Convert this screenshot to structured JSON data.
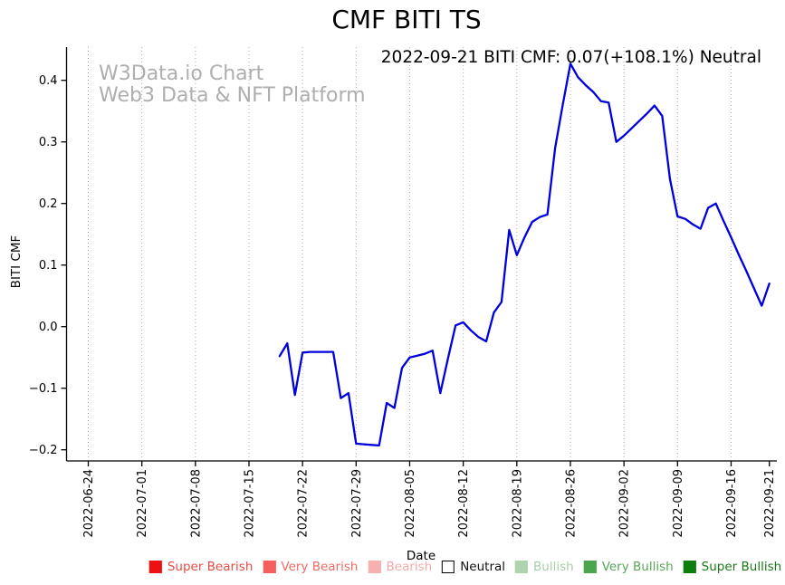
{
  "chart_data": {
    "type": "line",
    "title": "CMF BITI TS",
    "annotation": "2022-09-21 BITI CMF: 0.07(+108.1%) Neutral",
    "watermark": {
      "line1": "W3Data.io Chart",
      "line2": "Web3 Data & NFT Platform"
    },
    "xlabel": "Date",
    "ylabel": "BITI CMF",
    "grid": "vertical dotted gridlines at weekly x ticks",
    "legend_position": "bottom center",
    "colors": {
      "line": "#0000dd",
      "gridline": "#aaaaaa",
      "axis": "#000000",
      "watermark": "#aeaeae",
      "title": "#000000"
    },
    "ylim": [
      -0.217,
      0.454
    ],
    "y_ticks": [
      {
        "label": "0.4",
        "value": 0.4
      },
      {
        "label": "0.3",
        "value": 0.3
      },
      {
        "label": "0.2",
        "value": 0.2
      },
      {
        "label": "0.1",
        "value": 0.1
      },
      {
        "label": "0.0",
        "value": 0.0
      },
      {
        "label": "−0.1",
        "value": -0.1
      },
      {
        "label": "−0.2",
        "value": -0.2
      }
    ],
    "x_ticks": [
      {
        "label": "2022-06-24",
        "date": "2022-06-24",
        "grid": true
      },
      {
        "label": "2022-07-01",
        "date": "2022-07-01",
        "grid": true
      },
      {
        "label": "2022-07-08",
        "date": "2022-07-08",
        "grid": true
      },
      {
        "label": "2022-07-15",
        "date": "2022-07-15",
        "grid": true
      },
      {
        "label": "2022-07-22",
        "date": "2022-07-22",
        "grid": true
      },
      {
        "label": "2022-07-29",
        "date": "2022-07-29",
        "grid": true
      },
      {
        "label": "2022-08-05",
        "date": "2022-08-05",
        "grid": true
      },
      {
        "label": "2022-08-12",
        "date": "2022-08-12",
        "grid": true
      },
      {
        "label": "2022-08-19",
        "date": "2022-08-19",
        "grid": true
      },
      {
        "label": "2022-08-26",
        "date": "2022-08-26",
        "grid": true
      },
      {
        "label": "2022-09-02",
        "date": "2022-09-02",
        "grid": true
      },
      {
        "label": "2022-09-09",
        "date": "2022-09-09",
        "grid": true
      },
      {
        "label": "2022-09-16",
        "date": "2022-09-16",
        "grid": true
      },
      {
        "label": "2022-09-21",
        "date": "2022-09-21",
        "grid": false
      }
    ],
    "series": [
      {
        "name": "BITI CMF",
        "points": [
          {
            "date": "2022-07-19",
            "value": -0.048
          },
          {
            "date": "2022-07-20",
            "value": -0.027
          },
          {
            "date": "2022-07-21",
            "value": -0.111
          },
          {
            "date": "2022-07-22",
            "value": -0.042
          },
          {
            "date": "2022-07-23",
            "value": -0.041
          },
          {
            "date": "2022-07-24",
            "value": -0.041
          },
          {
            "date": "2022-07-25",
            "value": -0.041
          },
          {
            "date": "2022-07-26",
            "value": -0.041
          },
          {
            "date": "2022-07-27",
            "value": -0.116
          },
          {
            "date": "2022-07-28",
            "value": -0.108
          },
          {
            "date": "2022-07-29",
            "value": -0.19
          },
          {
            "date": "2022-07-30",
            "value": -0.191
          },
          {
            "date": "2022-07-31",
            "value": -0.192
          },
          {
            "date": "2022-08-01",
            "value": -0.193
          },
          {
            "date": "2022-08-02",
            "value": -0.124
          },
          {
            "date": "2022-08-03",
            "value": -0.132
          },
          {
            "date": "2022-08-04",
            "value": -0.067
          },
          {
            "date": "2022-08-05",
            "value": -0.05
          },
          {
            "date": "2022-08-06",
            "value": -0.047
          },
          {
            "date": "2022-08-07",
            "value": -0.044
          },
          {
            "date": "2022-08-08",
            "value": -0.039
          },
          {
            "date": "2022-08-09",
            "value": -0.108
          },
          {
            "date": "2022-08-10",
            "value": -0.052
          },
          {
            "date": "2022-08-11",
            "value": 0.002
          },
          {
            "date": "2022-08-12",
            "value": 0.007
          },
          {
            "date": "2022-08-13",
            "value": -0.006
          },
          {
            "date": "2022-08-14",
            "value": -0.017
          },
          {
            "date": "2022-08-15",
            "value": -0.024
          },
          {
            "date": "2022-08-16",
            "value": 0.023
          },
          {
            "date": "2022-08-17",
            "value": 0.04
          },
          {
            "date": "2022-08-18",
            "value": 0.157
          },
          {
            "date": "2022-08-19",
            "value": 0.116
          },
          {
            "date": "2022-08-20",
            "value": 0.145
          },
          {
            "date": "2022-08-21",
            "value": 0.17
          },
          {
            "date": "2022-08-22",
            "value": 0.178
          },
          {
            "date": "2022-08-23",
            "value": 0.182
          },
          {
            "date": "2022-08-24",
            "value": 0.29
          },
          {
            "date": "2022-08-25",
            "value": 0.36
          },
          {
            "date": "2022-08-26",
            "value": 0.427
          },
          {
            "date": "2022-08-27",
            "value": 0.405
          },
          {
            "date": "2022-08-28",
            "value": 0.392
          },
          {
            "date": "2022-08-29",
            "value": 0.381
          },
          {
            "date": "2022-08-30",
            "value": 0.366
          },
          {
            "date": "2022-08-31",
            "value": 0.364
          },
          {
            "date": "2022-09-01",
            "value": 0.3
          },
          {
            "date": "2022-09-02",
            "value": 0.31
          },
          {
            "date": "2022-09-03",
            "value": 0.322
          },
          {
            "date": "2022-09-04",
            "value": 0.334
          },
          {
            "date": "2022-09-05",
            "value": 0.346
          },
          {
            "date": "2022-09-06",
            "value": 0.359
          },
          {
            "date": "2022-09-07",
            "value": 0.342
          },
          {
            "date": "2022-09-08",
            "value": 0.24
          },
          {
            "date": "2022-09-09",
            "value": 0.179
          },
          {
            "date": "2022-09-10",
            "value": 0.175
          },
          {
            "date": "2022-09-11",
            "value": 0.166
          },
          {
            "date": "2022-09-12",
            "value": 0.159
          },
          {
            "date": "2022-09-13",
            "value": 0.193
          },
          {
            "date": "2022-09-14",
            "value": 0.2
          },
          {
            "date": "2022-09-15",
            "value": 0.172
          },
          {
            "date": "2022-09-16",
            "value": 0.145
          },
          {
            "date": "2022-09-17",
            "value": 0.117
          },
          {
            "date": "2022-09-18",
            "value": 0.09
          },
          {
            "date": "2022-09-19",
            "value": 0.062
          },
          {
            "date": "2022-09-20",
            "value": 0.034
          },
          {
            "date": "2022-09-21",
            "value": 0.07
          }
        ]
      }
    ],
    "legend": [
      {
        "label": "Super Bearish",
        "swatch": "#ee1111",
        "swatch_border": "#ee1111",
        "text_color": "#e64a44"
      },
      {
        "label": "Very Bearish",
        "swatch": "#f75e5e",
        "swatch_border": "#f75e5e",
        "text_color": "#f06a64"
      },
      {
        "label": "Bearish",
        "swatch": "#f8afaf",
        "swatch_border": "#f8afaf",
        "text_color": "#f5aaaa"
      },
      {
        "label": "Neutral",
        "swatch": "#ffffff",
        "swatch_border": "#000000",
        "text_color": "#111111"
      },
      {
        "label": "Bullish",
        "swatch": "#aed3ae",
        "swatch_border": "#aed3ae",
        "text_color": "#a9cda9"
      },
      {
        "label": "Very Bullish",
        "swatch": "#4ba64b",
        "swatch_border": "#4ba64b",
        "text_color": "#58a458"
      },
      {
        "label": "Super Bullish",
        "swatch": "#0d7d0d",
        "swatch_border": "#0d7d0d",
        "text_color": "#177817"
      }
    ]
  }
}
